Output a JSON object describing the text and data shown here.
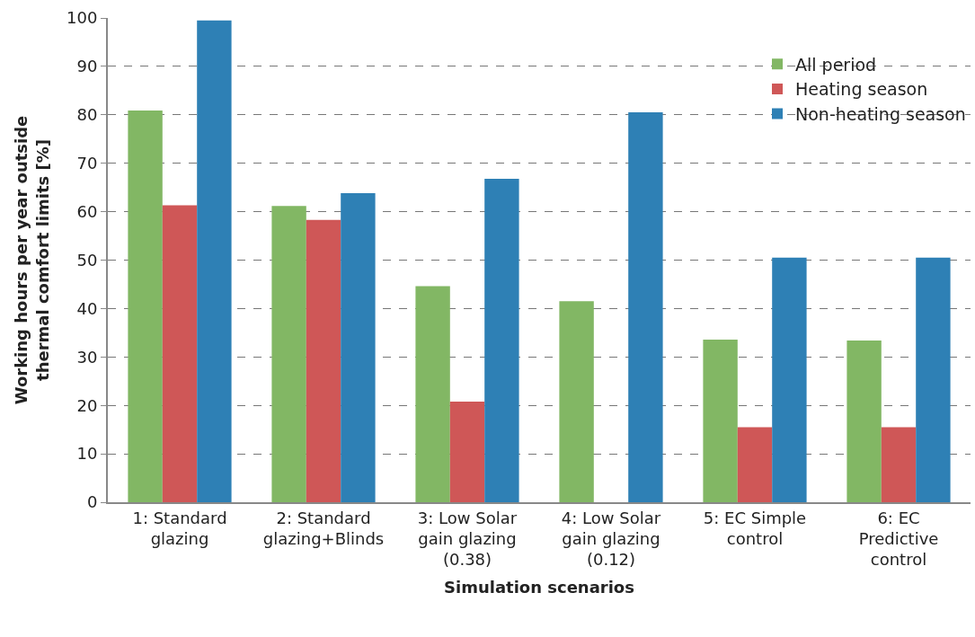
{
  "chart_data": {
    "type": "bar",
    "xlabel": "Simulation scenarios",
    "ylabel": "Working hours per year outside\nthermal comfort limits [%]",
    "categories": [
      "1: Standard\nglazing",
      "2: Standard\nglazing+Blinds",
      "3: Low Solar\ngain glazing\n(0.38)",
      "4: Low Solar\ngain glazing\n(0.12)",
      "5: EC Simple\ncontrol",
      "6: EC\nPredictive\ncontrol"
    ],
    "series": [
      {
        "name": "All period",
        "color": "#82b764",
        "values": [
          80.9,
          61.2,
          44.6,
          41.5,
          33.6,
          33.4
        ]
      },
      {
        "name": "Heating season",
        "color": "#cf5757",
        "values": [
          61.3,
          58.3,
          20.8,
          0,
          15.5,
          15.5
        ]
      },
      {
        "name": "Non-heating season",
        "color": "#2e80b5",
        "values": [
          99.5,
          63.8,
          66.8,
          80.5,
          50.5,
          50.5
        ]
      }
    ],
    "ylim": [
      0,
      100
    ],
    "yticks": [
      0,
      10,
      20,
      30,
      40,
      50,
      60,
      70,
      80,
      90,
      100
    ],
    "grid": "y",
    "legend": "top right"
  }
}
